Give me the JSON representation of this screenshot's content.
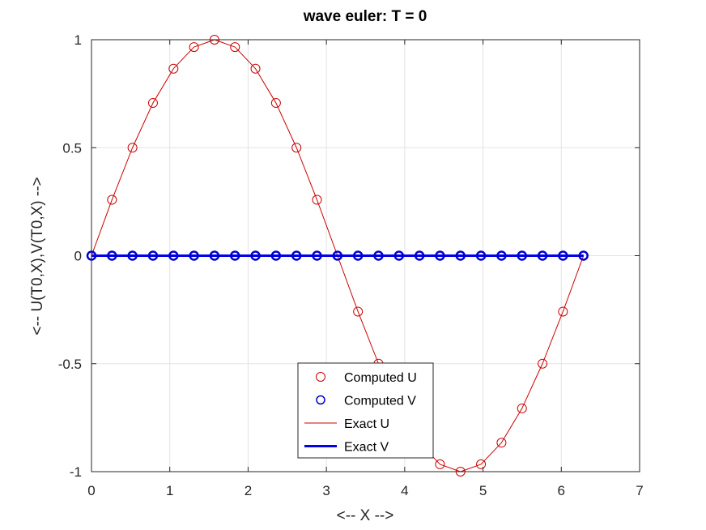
{
  "chart_data": {
    "type": "line",
    "title": "wave euler: T = 0",
    "xlabel": "<-- X -->",
    "ylabel": "<-- U(T0,X),V(T0,X) -->",
    "xlim": [
      0,
      7
    ],
    "ylim": [
      -1,
      1
    ],
    "xticks": [
      0,
      1,
      2,
      3,
      4,
      5,
      6,
      7
    ],
    "yticks": [
      -1,
      -0.5,
      0,
      0.5,
      1
    ],
    "xtick_labels": [
      "0",
      "1",
      "2",
      "3",
      "4",
      "5",
      "6",
      "7"
    ],
    "ytick_labels": [
      "-1",
      "-0.5",
      "0",
      "0.5",
      "1"
    ],
    "grid": true,
    "legend_position": "bottom-center",
    "x": [
      0,
      0.2618,
      0.5236,
      0.7854,
      1.0472,
      1.309,
      1.5708,
      1.8326,
      2.0944,
      2.3562,
      2.618,
      2.8798,
      3.1416,
      3.4034,
      3.6652,
      3.927,
      4.1888,
      4.4506,
      4.7124,
      4.9742,
      5.236,
      5.4978,
      5.7596,
      6.0214,
      6.2832
    ],
    "series": [
      {
        "name": "Computed U",
        "style": "markers",
        "color": "#cc0000",
        "values": [
          0,
          0.2588,
          0.5,
          0.7071,
          0.866,
          0.9659,
          1,
          0.9659,
          0.866,
          0.7071,
          0.5,
          0.2588,
          0,
          -0.2588,
          -0.5,
          -0.7071,
          -0.866,
          -0.9659,
          -1,
          -0.9659,
          -0.866,
          -0.7071,
          -0.5,
          -0.2588,
          0
        ]
      },
      {
        "name": "Computed V",
        "style": "markers",
        "color": "#0000cc",
        "values": [
          0,
          0,
          0,
          0,
          0,
          0,
          0,
          0,
          0,
          0,
          0,
          0,
          0,
          0,
          0,
          0,
          0,
          0,
          0,
          0,
          0,
          0,
          0,
          0,
          0
        ]
      },
      {
        "name": "Exact U",
        "style": "line-thin",
        "color": "#cc0000",
        "values": [
          0,
          0.2588,
          0.5,
          0.7071,
          0.866,
          0.9659,
          1,
          0.9659,
          0.866,
          0.7071,
          0.5,
          0.2588,
          0,
          -0.2588,
          -0.5,
          -0.7071,
          -0.866,
          -0.9659,
          -1,
          -0.9659,
          -0.866,
          -0.7071,
          -0.5,
          -0.2588,
          0
        ]
      },
      {
        "name": "Exact V",
        "style": "line-thick",
        "color": "#0000ee",
        "values": [
          0,
          0,
          0,
          0,
          0,
          0,
          0,
          0,
          0,
          0,
          0,
          0,
          0,
          0,
          0,
          0,
          0,
          0,
          0,
          0,
          0,
          0,
          0,
          0,
          0
        ]
      }
    ]
  }
}
